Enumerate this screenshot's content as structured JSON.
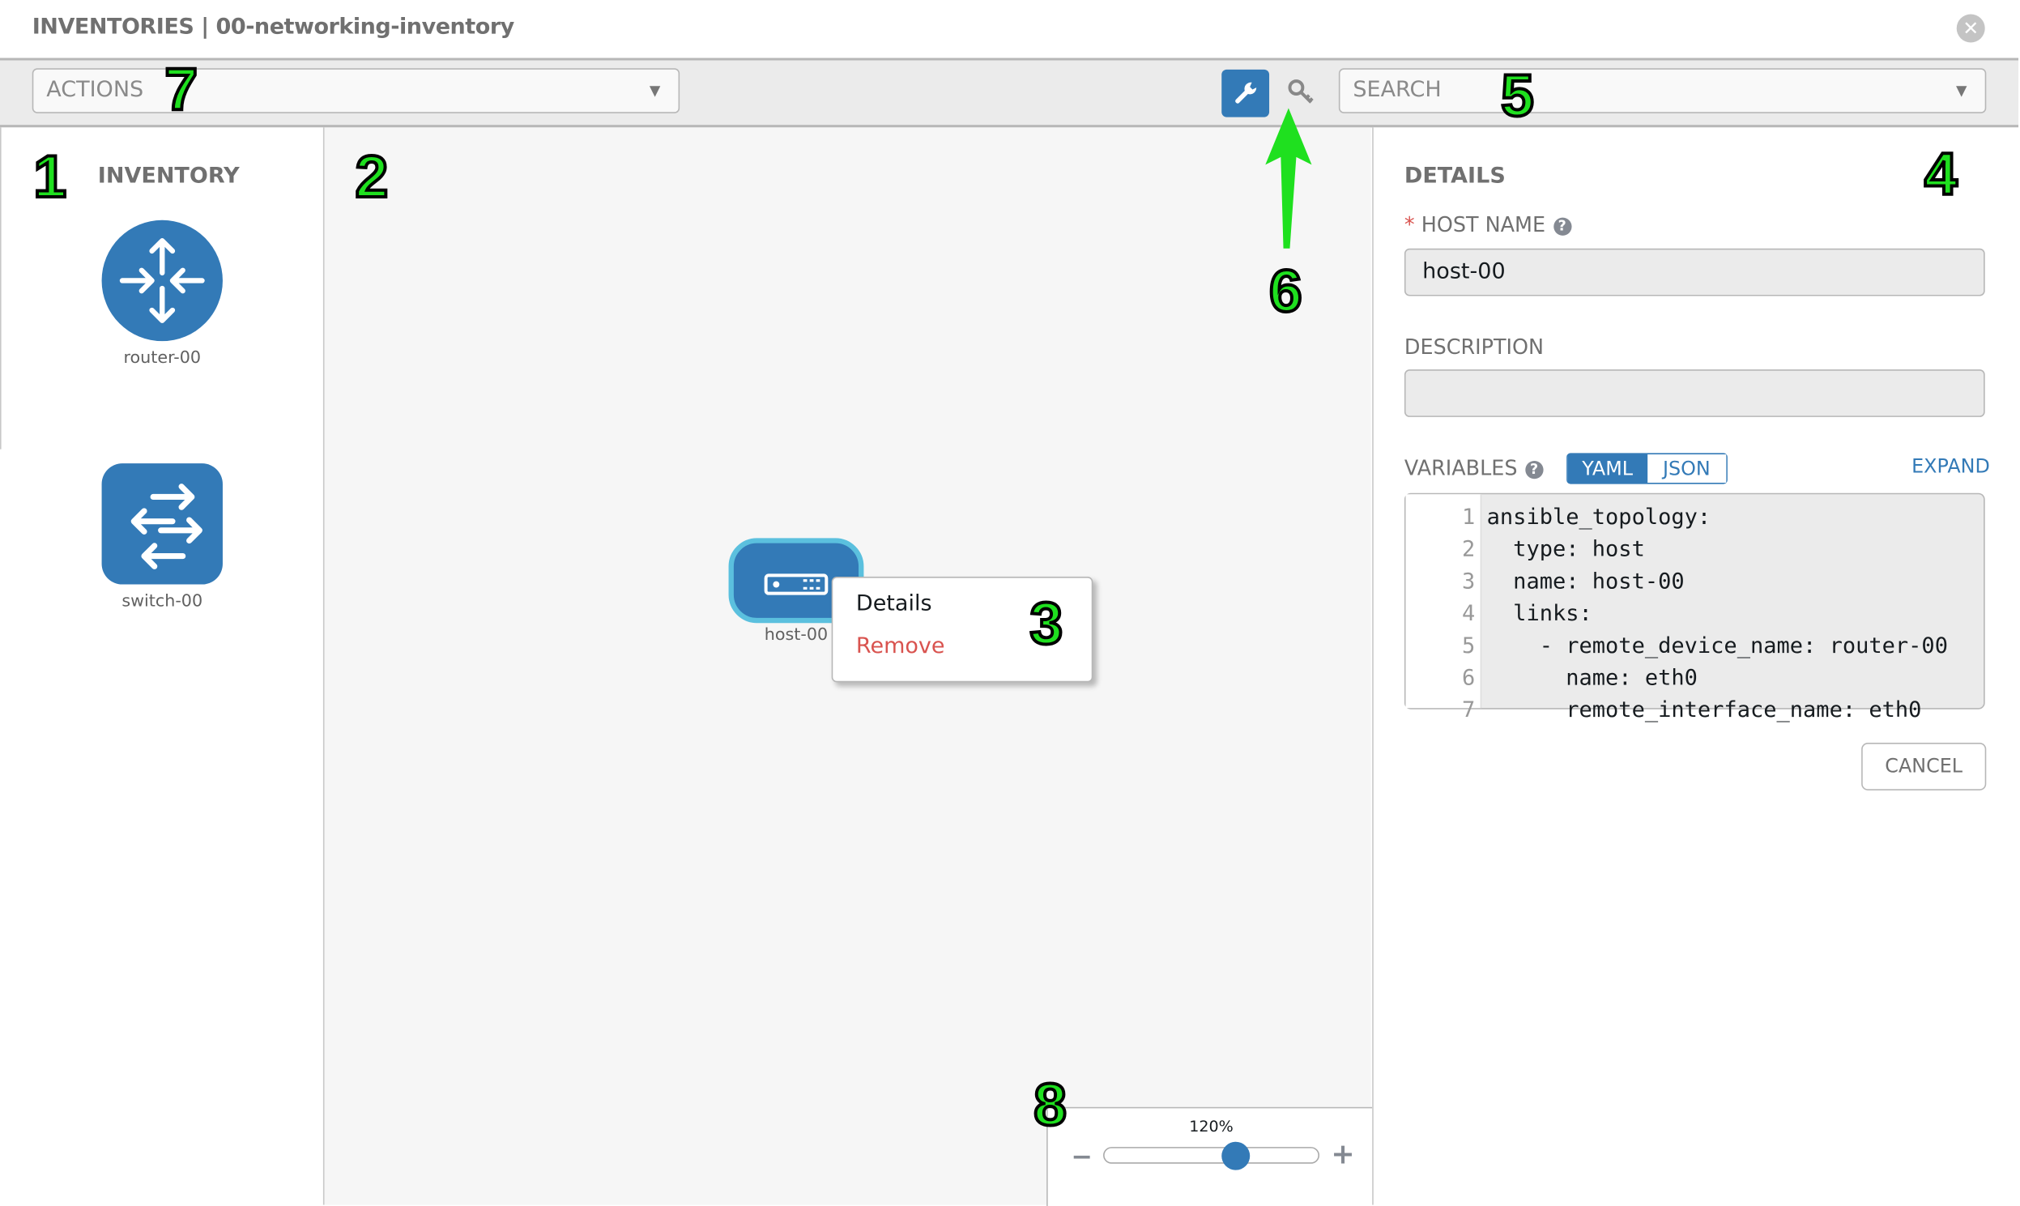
{
  "header": {
    "title": "INVENTORIES | 00-networking-inventory",
    "close_icon": "close-circle-icon"
  },
  "toolbar": {
    "actions_placeholder": "ACTIONS",
    "search_placeholder": "SEARCH",
    "tool_icons": [
      "wrench-icon",
      "key-icon"
    ],
    "active_tool": "wrench-icon"
  },
  "inventory": {
    "title": "INVENTORY",
    "items": [
      {
        "label": "router-00",
        "icon": "router-icon"
      },
      {
        "label": "switch-00",
        "icon": "switch-icon"
      }
    ]
  },
  "canvas": {
    "node": {
      "label": "host-00",
      "icon": "host-icon"
    },
    "context_menu": {
      "items": [
        {
          "label": "Details"
        },
        {
          "label": "Remove"
        }
      ]
    },
    "zoom": {
      "label": "120%",
      "value_percent": 120,
      "minus": "−",
      "plus": "+"
    }
  },
  "details": {
    "title": "DETAILS",
    "host_name": {
      "required_mark": "*",
      "label": "HOST NAME",
      "value": "host-00"
    },
    "description": {
      "label": "DESCRIPTION",
      "value": ""
    },
    "variables": {
      "label": "VARIABLES",
      "modes": [
        "YAML",
        "JSON"
      ],
      "active_mode": "YAML",
      "expand": "EXPAND",
      "lines": [
        {
          "n": "1",
          "text": "ansible_topology:"
        },
        {
          "n": "2",
          "text": "  type: host"
        },
        {
          "n": "3",
          "text": "  name: host-00"
        },
        {
          "n": "4",
          "text": "  links:"
        },
        {
          "n": "5",
          "text": "    - remote_device_name: router-00"
        },
        {
          "n": "6",
          "text": "      name: eth0"
        },
        {
          "n": "7",
          "text": "      remote_interface_name: eth0"
        }
      ]
    },
    "cancel": "CANCEL"
  },
  "annotations": [
    "1",
    "2",
    "3",
    "4",
    "5",
    "6",
    "7",
    "8"
  ],
  "colors": {
    "accent": "#337ab7",
    "danger": "#d9534f",
    "annotation": "#1fe01f",
    "node_border": "#5bc0de"
  }
}
